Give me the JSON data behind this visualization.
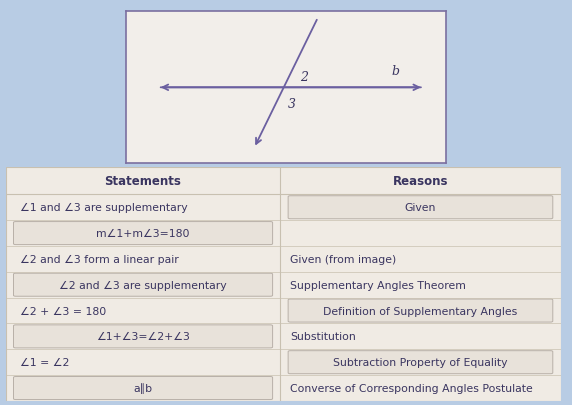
{
  "bg_color": "#b8cce4",
  "diagram_bg": "#f2eeea",
  "diagram_border": "#7b6fa0",
  "table_bg": "#f0ebe4",
  "table_border": "#c8c0b0",
  "box_bg": "#e8e2da",
  "box_border": "#b8b0a8",
  "title_statements": "Statements",
  "title_reasons": "Reasons",
  "rows": [
    {
      "stmt": "∠1 and ∠3 are supplementary",
      "stmt_align": "left",
      "stmt_box": false,
      "reason": "Given",
      "reason_box": true
    },
    {
      "stmt": "m∠1+m∠3=180",
      "stmt_align": "center",
      "stmt_box": true,
      "reason": "",
      "reason_box": false
    },
    {
      "stmt": "∠2 and ∠3 form a linear pair",
      "stmt_align": "left",
      "stmt_box": false,
      "reason": "Given (from image)",
      "reason_box": false
    },
    {
      "stmt": "∠2 and ∠3 are supplementary",
      "stmt_align": "center",
      "stmt_box": true,
      "reason": "Supplementary Angles Theorem",
      "reason_box": false
    },
    {
      "stmt": "∠2 + ∠3 = 180",
      "stmt_align": "left",
      "stmt_box": false,
      "reason": "Definition of Supplementary Angles",
      "reason_box": true
    },
    {
      "stmt": "∠1+∠3=∠2+∠3",
      "stmt_align": "center",
      "stmt_box": true,
      "reason": "Substitution",
      "reason_box": false
    },
    {
      "stmt": "∠1 = ∠2",
      "stmt_align": "left",
      "stmt_box": false,
      "reason": "Subtraction Property of Equality",
      "reason_box": true
    },
    {
      "stmt": "a∥b",
      "stmt_align": "center",
      "stmt_box": true,
      "reason": "Converse of Corresponding Angles Postulate",
      "reason_box": false
    }
  ],
  "line_color": "#6b5fa0",
  "text_color": "#3a3560",
  "header_font_size": 8.5,
  "cell_font_size": 7.8
}
